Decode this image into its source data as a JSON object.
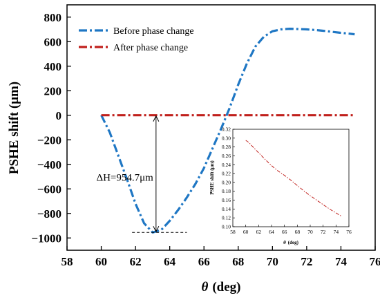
{
  "chart_data": [
    {
      "type": "line",
      "xlabel_symbol": "θ",
      "xlabel_unit": "(deg)",
      "ylabel": "PSHE shift (μm)",
      "xlim": [
        58,
        76
      ],
      "ylim": [
        -1100,
        900
      ],
      "x_ticks": [
        58,
        60,
        62,
        64,
        66,
        68,
        70,
        72,
        74,
        76
      ],
      "y_ticks": [
        -1000,
        -800,
        -600,
        -400,
        -200,
        0,
        200,
        400,
        600,
        800
      ],
      "x_tick_labels": [
        "58",
        "60",
        "62",
        "64",
        "66",
        "68",
        "70",
        "72",
        "74",
        "76"
      ],
      "y_tick_labels": [
        "−1000",
        "−800",
        "−600",
        "−400",
        "−200",
        "0",
        "200",
        "400",
        "600",
        "800"
      ],
      "legend_position": "top-left",
      "series": [
        {
          "name": "Before phase change",
          "color": "#1f77c4",
          "style": "dash-dot",
          "x": [
            60,
            60.5,
            61,
            61.5,
            62,
            62.5,
            63,
            63.5,
            64,
            64.5,
            65,
            65.5,
            66,
            66.5,
            67,
            67.5,
            68,
            68.5,
            69,
            69.5,
            70,
            70.5,
            71,
            71.5,
            72,
            72.5,
            73,
            73.5,
            74,
            74.5,
            74.8
          ],
          "y": [
            0,
            -140,
            -330,
            -520,
            -720,
            -880,
            -955,
            -935,
            -860,
            -770,
            -670,
            -560,
            -430,
            -270,
            -110,
            60,
            250,
            420,
            560,
            640,
            685,
            700,
            705,
            703,
            700,
            695,
            688,
            680,
            672,
            665,
            660
          ]
        },
        {
          "name": "After phase change",
          "color": "#c0201c",
          "style": "dash-dot",
          "x": [
            60,
            62,
            64,
            66,
            68,
            70,
            72,
            74,
            74.8
          ],
          "y": [
            0,
            0,
            0,
            0,
            0,
            0,
            0,
            0,
            0
          ]
        }
      ],
      "annotations": [
        {
          "text": "ΔH=954.7μm",
          "x": 63.2,
          "from": 0,
          "to": -954.7
        }
      ]
    },
    {
      "type": "line",
      "xlabel_symbol": "θ",
      "xlabel_unit": "(deg)",
      "ylabel": "PSHE shift (μm)",
      "xlim": [
        58,
        76
      ],
      "ylim": [
        0.1,
        0.32
      ],
      "x_ticks": [
        58,
        60,
        62,
        64,
        66,
        68,
        70,
        72,
        74,
        76
      ],
      "y_ticks": [
        0.1,
        0.12,
        0.14,
        0.16,
        0.18,
        0.2,
        0.22,
        0.24,
        0.26,
        0.28,
        0.3,
        0.32
      ],
      "x_tick_labels": [
        "58",
        "60",
        "62",
        "64",
        "66",
        "68",
        "70",
        "72",
        "74",
        "76"
      ],
      "y_tick_labels": [
        "0.10",
        "0.12",
        "0.14",
        "0.16",
        "0.18",
        "0.20",
        "0.22",
        "0.24",
        "0.26",
        "0.28",
        "0.30",
        "0.32"
      ],
      "series": [
        {
          "name": "After phase change",
          "color": "#c0201c",
          "style": "dash-dot",
          "x": [
            60,
            60.5,
            61,
            62,
            63,
            64,
            65,
            66,
            67,
            68,
            69,
            70,
            71,
            72,
            73,
            74,
            74.8
          ],
          "y": [
            0.295,
            0.29,
            0.282,
            0.267,
            0.252,
            0.238,
            0.226,
            0.216,
            0.205,
            0.193,
            0.181,
            0.17,
            0.16,
            0.15,
            0.14,
            0.131,
            0.124
          ]
        }
      ]
    }
  ]
}
